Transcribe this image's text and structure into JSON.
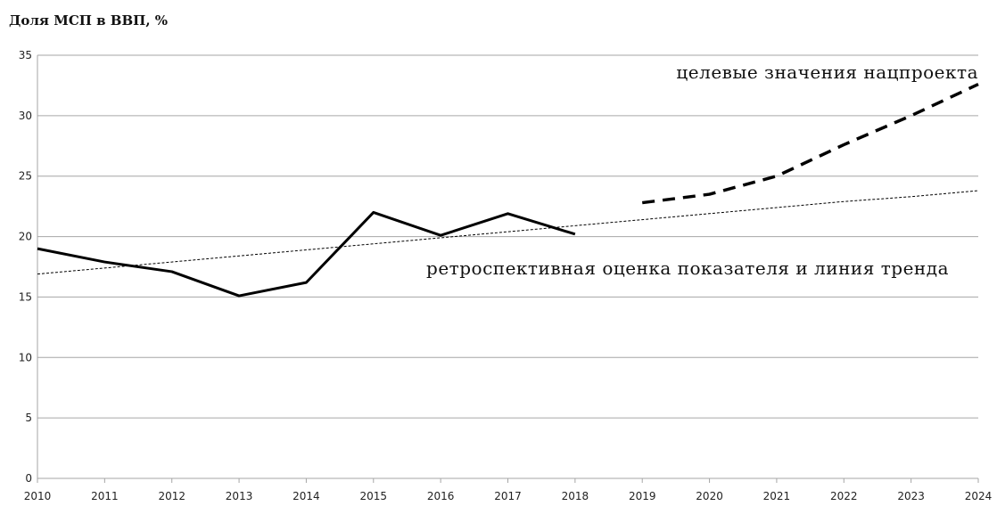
{
  "chart_data": {
    "type": "line",
    "title": "Доля МСП в ВВП, %",
    "annotations": [
      "целевые значения нацпроекта",
      "ретроспективная оценка показателя и линия тренда"
    ],
    "x": [
      2010,
      2011,
      2012,
      2013,
      2014,
      2015,
      2016,
      2017,
      2018,
      2019,
      2020,
      2021,
      2022,
      2023,
      2024
    ],
    "xlim": [
      2010,
      2024
    ],
    "xticks": [
      2010,
      2011,
      2012,
      2013,
      2014,
      2015,
      2016,
      2017,
      2018,
      2019,
      2020,
      2021,
      2022,
      2023,
      2024
    ],
    "ylim": [
      0,
      35
    ],
    "yticks": [
      0,
      5,
      10,
      15,
      20,
      25,
      30,
      35
    ],
    "grid": true,
    "series": [
      {
        "color": "#000000",
        "line_style": "solid",
        "values": [
          19.0,
          17.9,
          17.1,
          15.1,
          16.2,
          22.0,
          20.1,
          21.9,
          20.2,
          null,
          null,
          null,
          null,
          null,
          null
        ]
      },
      {
        "color": "#000000",
        "line_style": "dashed",
        "values": [
          null,
          null,
          null,
          null,
          null,
          null,
          null,
          null,
          null,
          22.8,
          23.5,
          25.0,
          27.6,
          30.0,
          32.6
        ]
      },
      {
        "color": "#000000",
        "line_style": "dotted",
        "values": [
          16.9,
          17.4,
          17.9,
          18.4,
          18.9,
          19.4,
          19.9,
          20.4,
          20.9,
          21.4,
          21.9,
          22.4,
          22.9,
          23.3,
          23.8
        ]
      }
    ]
  }
}
